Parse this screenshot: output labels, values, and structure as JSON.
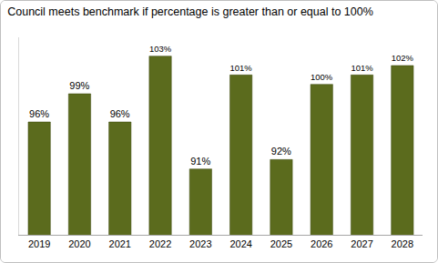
{
  "chart_data": {
    "type": "bar",
    "title": "Council meets benchmark if percentage is greater than or equal to 100%",
    "categories": [
      "2019",
      "2020",
      "2021",
      "2022",
      "2023",
      "2024",
      "2025",
      "2026",
      "2027",
      "2028"
    ],
    "values": [
      96,
      99,
      96,
      103,
      91,
      101,
      92,
      100,
      101,
      102
    ],
    "value_labels": [
      "96%",
      "99%",
      "96%",
      "103%",
      "91%",
      "101%",
      "92%",
      "100%",
      "101%",
      "102%"
    ],
    "color": "#5b6b1d",
    "ylim": [
      84,
      105
    ],
    "yticks": [],
    "grid": false,
    "data_labels": true,
    "tick_labels": "x"
  }
}
